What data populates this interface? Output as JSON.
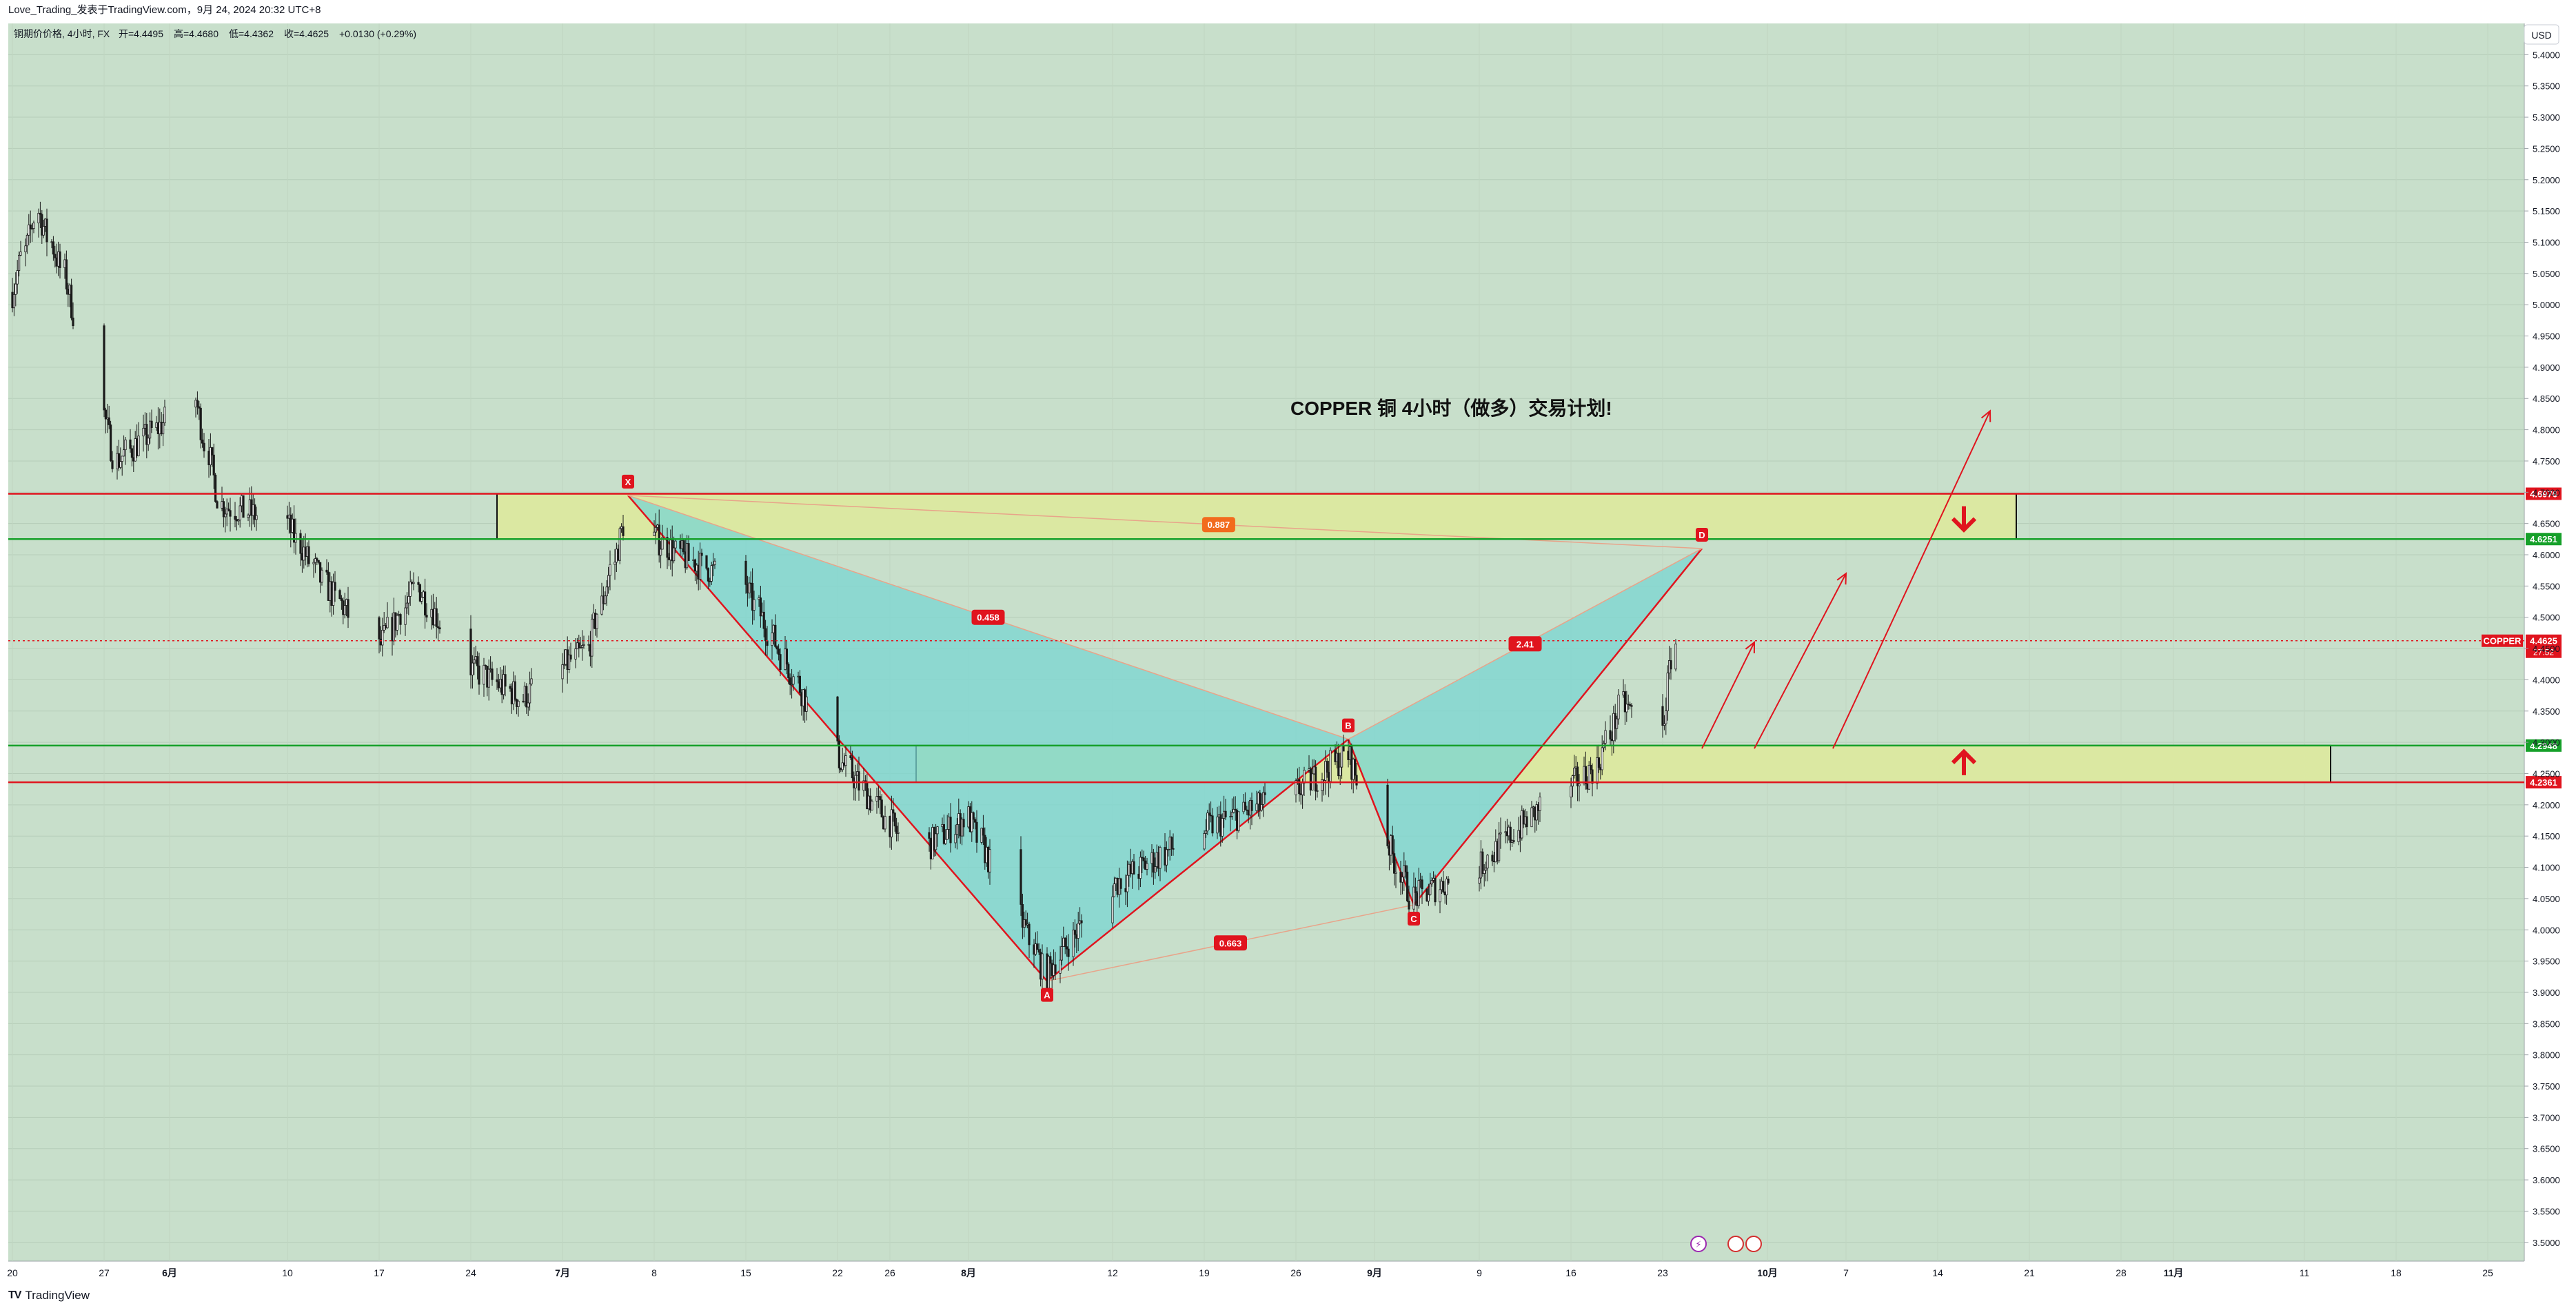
{
  "header": {
    "publish_line": "Love_Trading_发表于TradingView.com，9月 24, 2024 20:32 UTC+8"
  },
  "footer": {
    "brand": "TradingView"
  },
  "currency_button": "USD",
  "colors": {
    "background": "#c8dfcb",
    "resistance_line": "#e0141e",
    "support_line": "#16a02a",
    "zone_fill": "#dbe8a2",
    "pattern_fill": "#7ad6d1",
    "pattern_leg": "#e0141e",
    "label_red": "#e0141e",
    "label_orange": "#f26b1d",
    "candle": "#1a1a1a"
  },
  "chart_data": {
    "type": "candlestick",
    "title": "COPPER  铜 4小时（做多）交易计划!",
    "legend": {
      "symbol_line": "铜期价价格, 4小时, FX",
      "open": "开=4.4495",
      "high": "高=4.4680",
      "low": "低=4.4362",
      "close": "收=4.4625",
      "change": "+0.0130 (+0.29%)"
    },
    "y_axis": {
      "ticks": [
        "5.4000",
        "5.3500",
        "5.3000",
        "5.2500",
        "5.2000",
        "5.1500",
        "5.1000",
        "5.0500",
        "5.0000",
        "4.9500",
        "4.9000",
        "4.8500",
        "4.8000",
        "4.7500",
        "4.7000",
        "4.6500",
        "4.6000",
        "4.5500",
        "4.5000",
        "4.4500",
        "4.4000",
        "4.3500",
        "4.3000",
        "4.2500",
        "4.2000",
        "4.1500",
        "4.1000",
        "4.0500",
        "4.0000",
        "3.9500",
        "3.9000",
        "3.8500",
        "3.8000",
        "3.7500",
        "3.7000",
        "3.6500",
        "3.6000",
        "3.5500",
        "3.5000"
      ],
      "range": [
        3.47,
        5.45
      ],
      "currency": "USD"
    },
    "x_axis": {
      "ticks": [
        "20",
        "27",
        "6月",
        "10",
        "17",
        "24",
        "7月",
        "8",
        "15",
        "22",
        "26",
        "8月",
        "12",
        "19",
        "26",
        "9月",
        "9",
        "16",
        "23",
        "10月",
        "7",
        "14",
        "21",
        "28",
        "11月",
        "11",
        "18",
        "25"
      ]
    },
    "price_levels": [
      {
        "value": 4.6976,
        "label": "4.6976",
        "color": "#e0141e"
      },
      {
        "value": 4.6251,
        "label": "4.6251",
        "color": "#16a02a"
      },
      {
        "value": 4.2948,
        "label": "4.2948",
        "color": "#16a02a"
      },
      {
        "value": 4.2361,
        "label": "4.2361",
        "color": "#e0141e"
      }
    ],
    "current_price": {
      "symbol": "COPPER",
      "value": 4.4625,
      "label": "4.4625",
      "countdown": "27:52"
    },
    "zones": [
      {
        "name": "resistance-zone",
        "from_date": "2024-06-26",
        "to_date": "2024-10-20",
        "low": 4.6251,
        "high": 4.6976
      },
      {
        "name": "support-zone",
        "from_date": "2024-07-28",
        "to_date": "2024-11-13",
        "low": 4.2361,
        "high": 4.2948
      }
    ],
    "harmonic_pattern": {
      "points": [
        {
          "name": "X",
          "date": "2024-07-06",
          "price": 4.695
        },
        {
          "name": "A",
          "date": "2024-08-07",
          "price": 3.918
        },
        {
          "name": "B",
          "date": "2024-08-30",
          "price": 4.305
        },
        {
          "name": "C",
          "date": "2024-09-04",
          "price": 4.04
        },
        {
          "name": "D",
          "date": "2024-09-26",
          "price": 4.61
        }
      ],
      "ratios": [
        {
          "label": "0.887",
          "from": "X",
          "to": "D"
        },
        {
          "label": "0.458",
          "from": "X",
          "to": "B"
        },
        {
          "label": "0.663",
          "from": "A",
          "to": "C"
        },
        {
          "label": "2.41",
          "from": "B",
          "to": "D"
        }
      ]
    },
    "projections": [
      {
        "from_date": "2024-09-26",
        "from": 4.29,
        "to_date": "2024-09-30",
        "to": 4.46
      },
      {
        "from_date": "2024-09-30",
        "from": 4.29,
        "to_date": "2024-10-07",
        "to": 4.57
      },
      {
        "from_date": "2024-10-06",
        "from": 4.29,
        "to_date": "2024-10-18",
        "to": 4.83
      }
    ],
    "direction_markers": [
      {
        "name": "down-arrow",
        "date": "2024-10-16",
        "price": 4.66,
        "direction": "down"
      },
      {
        "name": "up-arrow",
        "date": "2024-10-16",
        "price": 4.265,
        "direction": "up"
      }
    ],
    "candles_note": "4-hour candles from ~2024-05-20 to 2024-09-24"
  }
}
